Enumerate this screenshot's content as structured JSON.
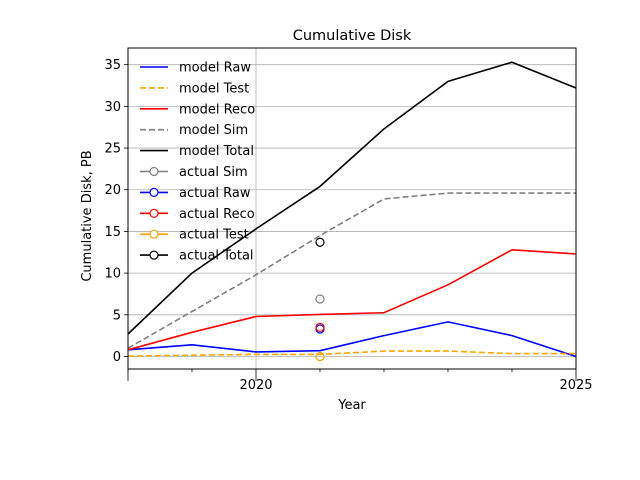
{
  "chart_data": {
    "type": "line",
    "title": "Cumulative Disk",
    "xlabel": "Year",
    "ylabel": "Cumulative Disk, PB",
    "xlim": [
      2018,
      2025
    ],
    "ylim": [
      -1.5,
      37
    ],
    "x_ticks": [
      {
        "value": 2020,
        "label": "2020"
      },
      {
        "value": 2025,
        "label": "2025"
      }
    ],
    "x_minor_ticks": [
      2018,
      2019,
      2020,
      2021,
      2022,
      2023,
      2024,
      2025
    ],
    "y_ticks": [
      0,
      5,
      10,
      15,
      20,
      25,
      30,
      35
    ],
    "grid": true,
    "legend_position": "top-left",
    "x": [
      2018,
      2019,
      2020,
      2021,
      2022,
      2023,
      2024,
      2025
    ],
    "series": [
      {
        "name": "model Raw",
        "kind": "line",
        "color": "#0000ff",
        "dashed": false,
        "values": [
          0.8,
          1.4,
          0.55,
          0.7,
          2.5,
          4.15,
          2.5,
          0.0
        ]
      },
      {
        "name": "model Test",
        "kind": "line",
        "color": "#ffa500",
        "dashed": true,
        "values": [
          0.05,
          0.15,
          0.25,
          0.25,
          0.65,
          0.65,
          0.35,
          0.35
        ]
      },
      {
        "name": "model Reco",
        "kind": "line",
        "color": "#ff0000",
        "dashed": false,
        "values": [
          0.8,
          2.9,
          4.8,
          5.05,
          5.25,
          8.6,
          12.8,
          12.3
        ]
      },
      {
        "name": "model Sim",
        "kind": "line",
        "color": "#808080",
        "dashed": true,
        "values": [
          1.0,
          5.4,
          9.8,
          14.5,
          18.9,
          19.6,
          19.6,
          19.6
        ]
      },
      {
        "name": "model Total",
        "kind": "line",
        "color": "#000000",
        "dashed": false,
        "values": [
          2.7,
          10.0,
          15.3,
          20.4,
          27.3,
          33.0,
          35.3,
          32.2
        ]
      },
      {
        "name": "actual Sim",
        "kind": "marker",
        "color": "#808080",
        "points": [
          {
            "x": 2021,
            "y": 6.9
          }
        ]
      },
      {
        "name": "actual Raw",
        "kind": "marker",
        "color": "#0000ff",
        "points": [
          {
            "x": 2021,
            "y": 3.3
          }
        ]
      },
      {
        "name": "actual Reco",
        "kind": "marker",
        "color": "#ff0000",
        "points": [
          {
            "x": 2021,
            "y": 3.5
          }
        ]
      },
      {
        "name": "actual Test",
        "kind": "marker",
        "color": "#ffa500",
        "points": [
          {
            "x": 2021,
            "y": 0.0
          }
        ]
      },
      {
        "name": "actual Total",
        "kind": "marker",
        "color": "#000000",
        "points": [
          {
            "x": 2021,
            "y": 13.7
          }
        ]
      }
    ]
  }
}
